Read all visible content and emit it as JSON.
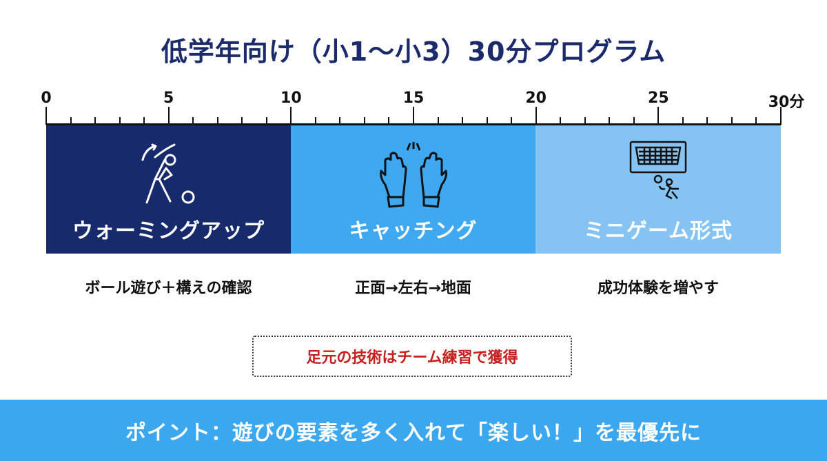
{
  "title": "低学年向け（小1〜小3）30分プログラム",
  "timeline": {
    "unit": "分",
    "tick_labels": [
      "0",
      "5",
      "10",
      "15",
      "20",
      "25",
      "30分"
    ],
    "range_minutes": [
      0,
      30
    ]
  },
  "segments": [
    {
      "label": "ウォーミングアップ",
      "start": 0,
      "end": 10,
      "color": "#172a6c",
      "icon": "stretching-person-with-ball-icon",
      "description": "ボール遊び＋構えの確認"
    },
    {
      "label": "キャッチング",
      "start": 10,
      "end": 20,
      "color": "#3ea9f1",
      "icon": "goalkeeper-gloves-icon",
      "description": "正面→左右→地面"
    },
    {
      "label": "ミニゲーム形式",
      "start": 20,
      "end": 30,
      "color": "#85c3f3",
      "icon": "goal-and-keeper-icon",
      "description": "成功体験を増やす"
    }
  ],
  "note": {
    "text": "足元の技術はチーム練習で獲得",
    "color": "#c81e1e"
  },
  "banner": {
    "text": "ポイント：遊びの要素を多く入れて「楽しい！」を最優先に",
    "color": "#3ba7ee"
  }
}
